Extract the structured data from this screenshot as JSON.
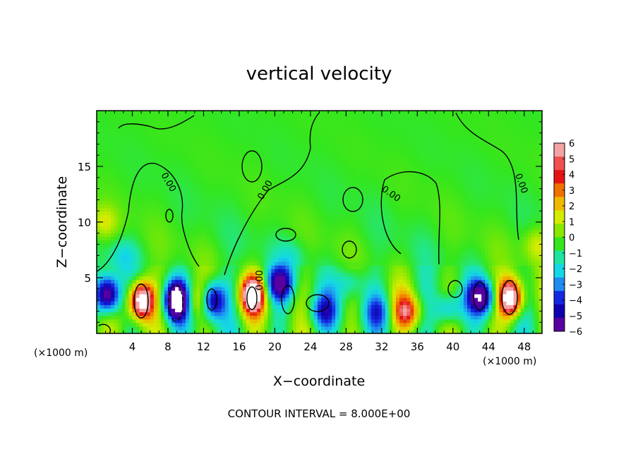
{
  "chart_data": {
    "type": "heatmap",
    "title": "vertical velocity",
    "xlabel": "X−coordinate",
    "ylabel": "Z−coordinate",
    "x_unit_left": "(×1000 m)",
    "x_unit_right": "(×1000 m)",
    "xlim": [
      0,
      50
    ],
    "ylim": [
      0,
      20
    ],
    "x_ticks": [
      4,
      8,
      12,
      16,
      20,
      24,
      28,
      32,
      36,
      40,
      44,
      48
    ],
    "y_ticks": [
      5,
      10,
      15
    ],
    "zero_contour_label": "0.00",
    "footer": "CONTOUR INTERVAL = 8.000E+00",
    "colorbar": {
      "ticks": [
        6,
        5,
        4,
        3,
        2,
        1,
        0,
        -1,
        -2,
        -3,
        -4,
        -5,
        -6
      ],
      "tick_labels": [
        "6",
        "5",
        "4",
        "3",
        "2",
        "1",
        "0",
        "−1",
        "−2",
        "−3",
        "−4",
        "−5",
        "−6"
      ],
      "colors": [
        "#f4a3a3",
        "#f05050",
        "#e41414",
        "#f07000",
        "#f0b800",
        "#d4ec00",
        "#88e800",
        "#34e61e",
        "#1ee6a0",
        "#14d8e6",
        "#1e8cf0",
        "#1428e0",
        "#1000b0",
        "#5a00a0"
      ]
    },
    "features": [
      {
        "x": 5.0,
        "z": 3.0,
        "w": 9.5,
        "kind": "updraft"
      },
      {
        "x": 17.5,
        "z": 3.5,
        "w": 8.0,
        "kind": "updraft"
      },
      {
        "x": 46.5,
        "z": 3.2,
        "w": 9.0,
        "kind": "updraft"
      },
      {
        "x": 34.8,
        "z": 2.0,
        "w": 4.5,
        "kind": "updraft"
      },
      {
        "x": 11.0,
        "z": 3.0,
        "w": 3.0,
        "kind": "updraft"
      },
      {
        "x": 49.5,
        "z": 8.0,
        "w": 2.0,
        "kind": "updraft"
      },
      {
        "x": 0.8,
        "z": 10.0,
        "w": 2.0,
        "kind": "updraft"
      },
      {
        "x": 9.0,
        "z": 3.0,
        "w": -9.0,
        "kind": "downdraft"
      },
      {
        "x": 1.2,
        "z": 3.5,
        "w": -8.0,
        "kind": "downdraft"
      },
      {
        "x": 13.0,
        "z": 3.0,
        "w": -6.5,
        "kind": "downdraft"
      },
      {
        "x": 20.5,
        "z": 4.5,
        "w": -5.5,
        "kind": "downdraft"
      },
      {
        "x": 43.2,
        "z": 3.3,
        "w": -6.0,
        "kind": "downdraft"
      },
      {
        "x": 25.5,
        "z": 2.0,
        "w": -3.5,
        "kind": "downdraft"
      },
      {
        "x": 39.5,
        "z": 2.2,
        "w": -3.5,
        "kind": "downdraft"
      },
      {
        "x": 31.5,
        "z": 2.0,
        "w": -3.0,
        "kind": "downdraft"
      },
      {
        "x": 3.0,
        "z": 7.0,
        "w": -1.5,
        "kind": "downdraft"
      },
      {
        "x": 22.0,
        "z": 7.0,
        "w": -1.2,
        "kind": "downdraft"
      },
      {
        "x": 28.5,
        "z": 4.5,
        "w": -2.5,
        "kind": "downdraft"
      }
    ]
  }
}
